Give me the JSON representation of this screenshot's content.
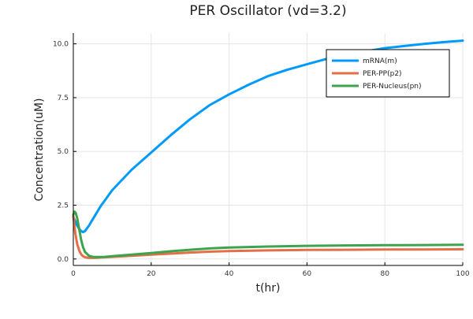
{
  "chart_data": {
    "type": "line",
    "title": "PER Oscillator (vd=3.2)",
    "xlabel": "t(hr)",
    "ylabel": "Concentration(uM)",
    "xlim": [
      0,
      100
    ],
    "ylim": [
      -0.3,
      10.5
    ],
    "xticks": [
      0,
      20,
      40,
      60,
      80,
      100
    ],
    "xtick_labels": [
      "0",
      "20",
      "40",
      "60",
      "80",
      "100"
    ],
    "yticks": [
      0,
      2.5,
      5,
      7.5,
      10
    ],
    "ytick_labels": [
      "0.0",
      "2.5",
      "5.0",
      "7.5",
      "10.0"
    ],
    "grid": true,
    "legend_position": "top-right",
    "series": [
      {
        "name": "mRNA(m)",
        "color": "#009AF9",
        "x": [
          0,
          0.5,
          1,
          1.5,
          2,
          2.5,
          3,
          4,
          5,
          7,
          10,
          15,
          20,
          25,
          30,
          35,
          40,
          45,
          50,
          55,
          60,
          65,
          70,
          75,
          80,
          85,
          90,
          95,
          100
        ],
        "y": [
          1.95,
          1.75,
          1.55,
          1.4,
          1.3,
          1.25,
          1.3,
          1.55,
          1.85,
          2.45,
          3.2,
          4.15,
          4.95,
          5.75,
          6.5,
          7.15,
          7.65,
          8.1,
          8.5,
          8.8,
          9.05,
          9.3,
          9.5,
          9.65,
          9.8,
          9.9,
          10.0,
          10.08,
          10.15
        ]
      },
      {
        "name": "PER-PP(p2)",
        "color": "#E26F46",
        "x": [
          0,
          0.5,
          1,
          1.5,
          2,
          2.5,
          3,
          4,
          5,
          6,
          8,
          10,
          15,
          20,
          25,
          30,
          35,
          40,
          50,
          60,
          70,
          80,
          90,
          100
        ],
        "y": [
          2.0,
          1.2,
          0.7,
          0.4,
          0.22,
          0.13,
          0.08,
          0.05,
          0.05,
          0.06,
          0.08,
          0.1,
          0.15,
          0.2,
          0.25,
          0.3,
          0.34,
          0.37,
          0.4,
          0.42,
          0.43,
          0.44,
          0.44,
          0.45
        ]
      },
      {
        "name": "PER-Nucleus(pn)",
        "color": "#3DA44D",
        "x": [
          0,
          0.3,
          0.6,
          1,
          1.5,
          2,
          2.5,
          3,
          4,
          5,
          6,
          8,
          10,
          15,
          20,
          25,
          30,
          35,
          40,
          50,
          60,
          70,
          80,
          90,
          100
        ],
        "y": [
          2.05,
          2.2,
          2.15,
          1.9,
          1.4,
          0.9,
          0.55,
          0.33,
          0.15,
          0.1,
          0.09,
          0.1,
          0.13,
          0.2,
          0.28,
          0.36,
          0.43,
          0.49,
          0.53,
          0.58,
          0.61,
          0.63,
          0.64,
          0.65,
          0.66
        ]
      }
    ]
  }
}
